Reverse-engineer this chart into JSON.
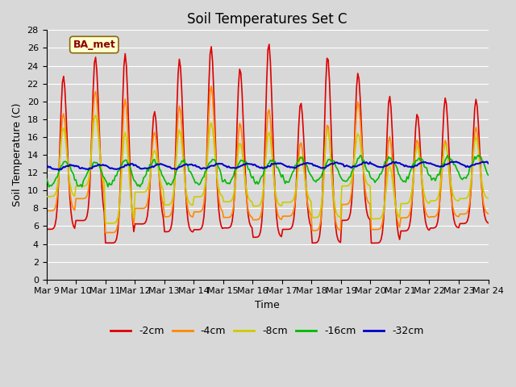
{
  "title": "Soil Temperatures Set C",
  "xlabel": "Time",
  "ylabel": "Soil Temperature (C)",
  "ylim": [
    0,
    28
  ],
  "yticks": [
    0,
    2,
    4,
    6,
    8,
    10,
    12,
    14,
    16,
    18,
    20,
    22,
    24,
    26,
    28
  ],
  "x_tick_days": [
    9,
    10,
    11,
    12,
    13,
    14,
    15,
    16,
    17,
    18,
    19,
    20,
    21,
    22,
    23,
    24
  ],
  "series_colors": [
    "#dd0000",
    "#ff8800",
    "#cccc00",
    "#00bb00",
    "#0000cc"
  ],
  "series_labels": [
    "-2cm",
    "-4cm",
    "-8cm",
    "-16cm",
    "-32cm"
  ],
  "series_linewidths": [
    1.2,
    1.2,
    1.2,
    1.2,
    1.5
  ],
  "bg_color": "#d8d8d8",
  "plot_bg_color": "#d8d8d8",
  "annotation_text": "BA_met",
  "grid_color": "#ffffff",
  "title_fontsize": 12,
  "label_fontsize": 9,
  "tick_fontsize": 8
}
